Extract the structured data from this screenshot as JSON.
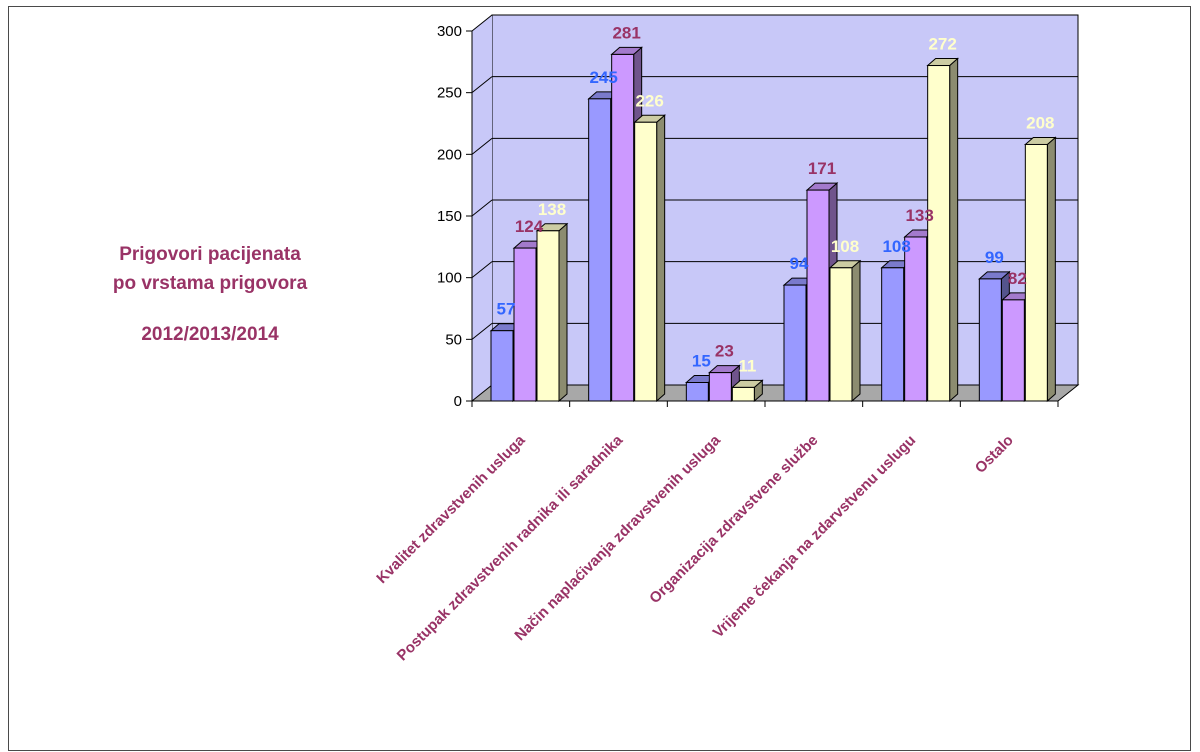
{
  "title_lines": [
    "Prigovori pacijenata",
    "po vrstama prigovora"
  ],
  "subtitle": "2012/2013/2014",
  "colors": {
    "title": "#993366",
    "category_label": "#993366",
    "wall": "#C8C8F8",
    "floor": "#A8A8A8",
    "gridline": "#000000"
  },
  "chart_data": {
    "type": "bar",
    "title": "Prigovori pacijenata po vrstama prigovora 2012/2013/2014",
    "categories": [
      "Kvalitet zdravstvenih usluga",
      "Postupak zdravstvenih radnika ili saradnika",
      "Način naplaćivanja zdravstvenih usluga",
      "Organizacija zdravstvene službe",
      "Vrijeme čekanja na zdarvstvenu uslugu",
      "Ostalo"
    ],
    "series": [
      {
        "values": [
          57,
          245,
          15,
          94,
          108,
          99
        ],
        "color": "#9999FF",
        "label_color": "#3366FF"
      },
      {
        "values": [
          124,
          281,
          23,
          171,
          133,
          82
        ],
        "color": "#CC99FF",
        "label_color": "#993366"
      },
      {
        "values": [
          138,
          226,
          11,
          108,
          272,
          208
        ],
        "color": "#FFFFCC",
        "label_color": "#FFFFCC"
      }
    ],
    "ylim": [
      0,
      300
    ],
    "yticks": [
      0,
      50,
      100,
      150,
      200,
      250,
      300
    ],
    "grid": true,
    "legend": "none",
    "is_3d": true
  }
}
